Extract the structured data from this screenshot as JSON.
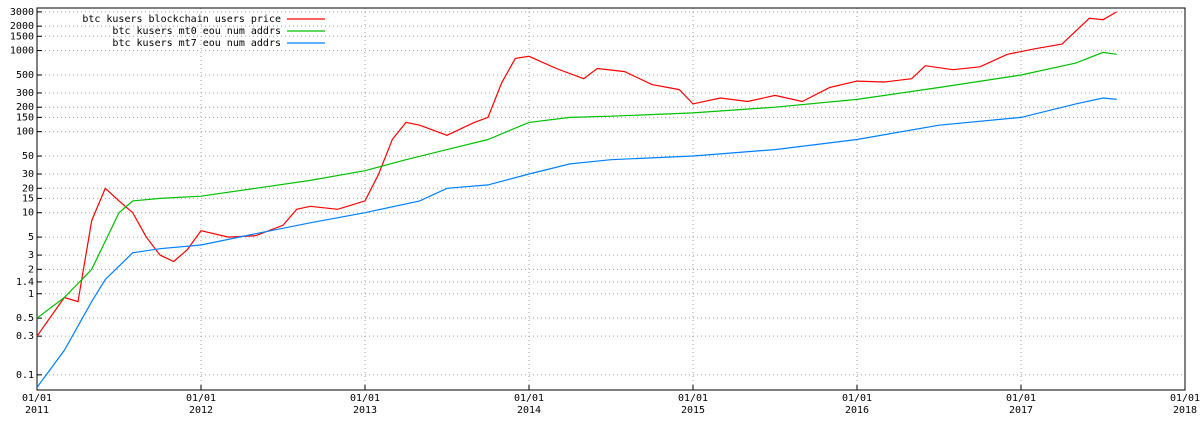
{
  "chart_data": {
    "type": "line",
    "log_y": true,
    "grid": true,
    "legend": "top-left",
    "xlim": [
      "2011-01",
      "2018-01"
    ],
    "xticks": [
      {
        "value": "2011-01",
        "label": [
          "01/01",
          "2011"
        ]
      },
      {
        "value": "2012-01",
        "label": [
          "01/01",
          "2012"
        ]
      },
      {
        "value": "2013-01",
        "label": [
          "01/01",
          "2013"
        ]
      },
      {
        "value": "2014-01",
        "label": [
          "01/01",
          "2014"
        ]
      },
      {
        "value": "2015-01",
        "label": [
          "01/01",
          "2015"
        ]
      },
      {
        "value": "2016-01",
        "label": [
          "01/01",
          "2016"
        ]
      },
      {
        "value": "2017-01",
        "label": [
          "01/01",
          "2017"
        ]
      },
      {
        "value": "2018-01",
        "label": [
          "01/01",
          "2018"
        ]
      }
    ],
    "ylim": [
      0.065,
      3350
    ],
    "yticks": [
      0.1,
      0.3,
      0.5,
      1,
      1.4,
      2,
      3,
      5,
      10,
      15,
      20,
      30,
      50,
      100,
      150,
      200,
      300,
      500,
      1000,
      1500,
      2000,
      3000
    ],
    "series": [
      {
        "name": "btc kusers blockchain users price",
        "color": "#ff0000",
        "x": [
          "2011-01",
          "2011-03",
          "2011-04",
          "2011-05",
          "2011-06",
          "2011-07",
          "2011-08",
          "2011-09",
          "2011-10",
          "2011-11",
          "2011-12",
          "2012-01",
          "2012-03",
          "2012-05",
          "2012-07",
          "2012-08",
          "2012-09",
          "2012-11",
          "2013-01",
          "2013-02",
          "2013-03",
          "2013-04",
          "2013-05",
          "2013-07",
          "2013-09",
          "2013-10",
          "2013-11",
          "2013-12",
          "2014-01",
          "2014-03",
          "2014-05",
          "2014-06",
          "2014-08",
          "2014-10",
          "2014-12",
          "2015-01",
          "2015-03",
          "2015-05",
          "2015-07",
          "2015-09",
          "2015-11",
          "2016-01",
          "2016-03",
          "2016-05",
          "2016-06",
          "2016-08",
          "2016-10",
          "2016-12",
          "2017-02",
          "2017-04",
          "2017-06",
          "2017-07",
          "2017-08"
        ],
        "values": [
          0.3,
          0.9,
          0.8,
          8,
          20,
          14,
          10,
          5,
          3,
          2.5,
          3.5,
          6,
          5,
          5.2,
          7,
          11,
          12,
          11,
          14,
          30,
          80,
          130,
          120,
          90,
          130,
          150,
          400,
          800,
          850,
          600,
          450,
          600,
          550,
          380,
          330,
          220,
          260,
          235,
          280,
          235,
          350,
          420,
          410,
          450,
          650,
          580,
          630,
          900,
          1050,
          1200,
          2500,
          2400,
          3000
        ]
      },
      {
        "name": "btc kusers mt0 eou num addrs",
        "color": "#00c000",
        "x": [
          "2011-01",
          "2011-03",
          "2011-05",
          "2011-07",
          "2011-08",
          "2011-10",
          "2012-01",
          "2012-05",
          "2012-09",
          "2013-01",
          "2013-04",
          "2013-07",
          "2013-10",
          "2014-01",
          "2014-04",
          "2014-07",
          "2015-01",
          "2015-07",
          "2016-01",
          "2016-07",
          "2017-01",
          "2017-05",
          "2017-07",
          "2017-08"
        ],
        "values": [
          0.5,
          0.9,
          2,
          10,
          14,
          15,
          16,
          20,
          25,
          33,
          45,
          60,
          80,
          130,
          150,
          155,
          170,
          200,
          250,
          350,
          500,
          700,
          950,
          900
        ]
      },
      {
        "name": "btc kusers mt7 eou num addrs",
        "color": "#0080ff",
        "x": [
          "2011-01",
          "2011-03",
          "2011-05",
          "2011-06",
          "2011-08",
          "2011-10",
          "2012-01",
          "2012-05",
          "2012-09",
          "2013-01",
          "2013-05",
          "2013-07",
          "2013-10",
          "2014-01",
          "2014-04",
          "2014-07",
          "2015-01",
          "2015-07",
          "2016-01",
          "2016-07",
          "2017-01",
          "2017-05",
          "2017-07",
          "2017-08"
        ],
        "values": [
          0.07,
          0.2,
          0.8,
          1.5,
          3.2,
          3.6,
          4,
          5.5,
          7.5,
          10,
          14,
          20,
          22,
          30,
          40,
          45,
          50,
          60,
          80,
          120,
          150,
          220,
          260,
          250
        ]
      }
    ]
  }
}
